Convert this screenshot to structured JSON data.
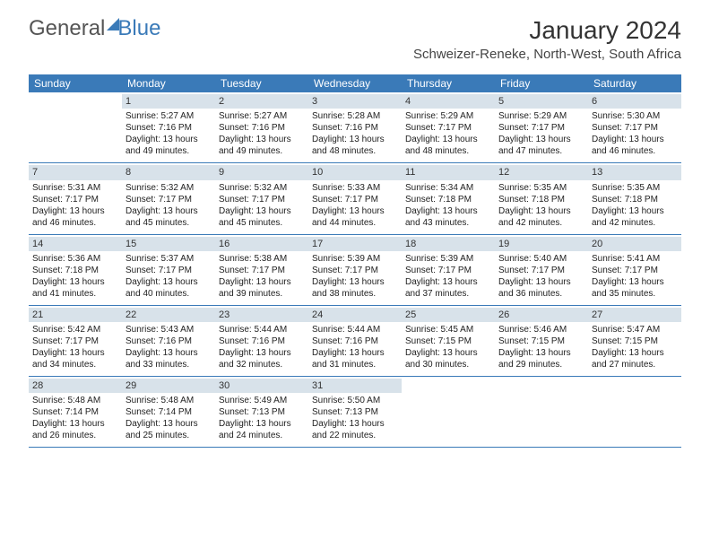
{
  "logo": {
    "text1": "General",
    "text2": "Blue"
  },
  "title": "January 2024",
  "location": "Schweizer-Reneke, North-West, South Africa",
  "colors": {
    "header_bg": "#3a7ab8",
    "header_text": "#ffffff",
    "datebar_bg": "#d8e2ea",
    "row_border": "#3a7ab8",
    "page_bg": "#ffffff"
  },
  "day_headers": [
    "Sunday",
    "Monday",
    "Tuesday",
    "Wednesday",
    "Thursday",
    "Friday",
    "Saturday"
  ],
  "weeks": [
    [
      {
        "empty": true
      },
      {
        "date": "1",
        "sunrise": "Sunrise: 5:27 AM",
        "sunset": "Sunset: 7:16 PM",
        "daylight": "Daylight: 13 hours and 49 minutes."
      },
      {
        "date": "2",
        "sunrise": "Sunrise: 5:27 AM",
        "sunset": "Sunset: 7:16 PM",
        "daylight": "Daylight: 13 hours and 49 minutes."
      },
      {
        "date": "3",
        "sunrise": "Sunrise: 5:28 AM",
        "sunset": "Sunset: 7:16 PM",
        "daylight": "Daylight: 13 hours and 48 minutes."
      },
      {
        "date": "4",
        "sunrise": "Sunrise: 5:29 AM",
        "sunset": "Sunset: 7:17 PM",
        "daylight": "Daylight: 13 hours and 48 minutes."
      },
      {
        "date": "5",
        "sunrise": "Sunrise: 5:29 AM",
        "sunset": "Sunset: 7:17 PM",
        "daylight": "Daylight: 13 hours and 47 minutes."
      },
      {
        "date": "6",
        "sunrise": "Sunrise: 5:30 AM",
        "sunset": "Sunset: 7:17 PM",
        "daylight": "Daylight: 13 hours and 46 minutes."
      }
    ],
    [
      {
        "date": "7",
        "sunrise": "Sunrise: 5:31 AM",
        "sunset": "Sunset: 7:17 PM",
        "daylight": "Daylight: 13 hours and 46 minutes."
      },
      {
        "date": "8",
        "sunrise": "Sunrise: 5:32 AM",
        "sunset": "Sunset: 7:17 PM",
        "daylight": "Daylight: 13 hours and 45 minutes."
      },
      {
        "date": "9",
        "sunrise": "Sunrise: 5:32 AM",
        "sunset": "Sunset: 7:17 PM",
        "daylight": "Daylight: 13 hours and 45 minutes."
      },
      {
        "date": "10",
        "sunrise": "Sunrise: 5:33 AM",
        "sunset": "Sunset: 7:17 PM",
        "daylight": "Daylight: 13 hours and 44 minutes."
      },
      {
        "date": "11",
        "sunrise": "Sunrise: 5:34 AM",
        "sunset": "Sunset: 7:18 PM",
        "daylight": "Daylight: 13 hours and 43 minutes."
      },
      {
        "date": "12",
        "sunrise": "Sunrise: 5:35 AM",
        "sunset": "Sunset: 7:18 PM",
        "daylight": "Daylight: 13 hours and 42 minutes."
      },
      {
        "date": "13",
        "sunrise": "Sunrise: 5:35 AM",
        "sunset": "Sunset: 7:18 PM",
        "daylight": "Daylight: 13 hours and 42 minutes."
      }
    ],
    [
      {
        "date": "14",
        "sunrise": "Sunrise: 5:36 AM",
        "sunset": "Sunset: 7:18 PM",
        "daylight": "Daylight: 13 hours and 41 minutes."
      },
      {
        "date": "15",
        "sunrise": "Sunrise: 5:37 AM",
        "sunset": "Sunset: 7:17 PM",
        "daylight": "Daylight: 13 hours and 40 minutes."
      },
      {
        "date": "16",
        "sunrise": "Sunrise: 5:38 AM",
        "sunset": "Sunset: 7:17 PM",
        "daylight": "Daylight: 13 hours and 39 minutes."
      },
      {
        "date": "17",
        "sunrise": "Sunrise: 5:39 AM",
        "sunset": "Sunset: 7:17 PM",
        "daylight": "Daylight: 13 hours and 38 minutes."
      },
      {
        "date": "18",
        "sunrise": "Sunrise: 5:39 AM",
        "sunset": "Sunset: 7:17 PM",
        "daylight": "Daylight: 13 hours and 37 minutes."
      },
      {
        "date": "19",
        "sunrise": "Sunrise: 5:40 AM",
        "sunset": "Sunset: 7:17 PM",
        "daylight": "Daylight: 13 hours and 36 minutes."
      },
      {
        "date": "20",
        "sunrise": "Sunrise: 5:41 AM",
        "sunset": "Sunset: 7:17 PM",
        "daylight": "Daylight: 13 hours and 35 minutes."
      }
    ],
    [
      {
        "date": "21",
        "sunrise": "Sunrise: 5:42 AM",
        "sunset": "Sunset: 7:17 PM",
        "daylight": "Daylight: 13 hours and 34 minutes."
      },
      {
        "date": "22",
        "sunrise": "Sunrise: 5:43 AM",
        "sunset": "Sunset: 7:16 PM",
        "daylight": "Daylight: 13 hours and 33 minutes."
      },
      {
        "date": "23",
        "sunrise": "Sunrise: 5:44 AM",
        "sunset": "Sunset: 7:16 PM",
        "daylight": "Daylight: 13 hours and 32 minutes."
      },
      {
        "date": "24",
        "sunrise": "Sunrise: 5:44 AM",
        "sunset": "Sunset: 7:16 PM",
        "daylight": "Daylight: 13 hours and 31 minutes."
      },
      {
        "date": "25",
        "sunrise": "Sunrise: 5:45 AM",
        "sunset": "Sunset: 7:15 PM",
        "daylight": "Daylight: 13 hours and 30 minutes."
      },
      {
        "date": "26",
        "sunrise": "Sunrise: 5:46 AM",
        "sunset": "Sunset: 7:15 PM",
        "daylight": "Daylight: 13 hours and 29 minutes."
      },
      {
        "date": "27",
        "sunrise": "Sunrise: 5:47 AM",
        "sunset": "Sunset: 7:15 PM",
        "daylight": "Daylight: 13 hours and 27 minutes."
      }
    ],
    [
      {
        "date": "28",
        "sunrise": "Sunrise: 5:48 AM",
        "sunset": "Sunset: 7:14 PM",
        "daylight": "Daylight: 13 hours and 26 minutes."
      },
      {
        "date": "29",
        "sunrise": "Sunrise: 5:48 AM",
        "sunset": "Sunset: 7:14 PM",
        "daylight": "Daylight: 13 hours and 25 minutes."
      },
      {
        "date": "30",
        "sunrise": "Sunrise: 5:49 AM",
        "sunset": "Sunset: 7:13 PM",
        "daylight": "Daylight: 13 hours and 24 minutes."
      },
      {
        "date": "31",
        "sunrise": "Sunrise: 5:50 AM",
        "sunset": "Sunset: 7:13 PM",
        "daylight": "Daylight: 13 hours and 22 minutes."
      },
      {
        "empty": true
      },
      {
        "empty": true
      },
      {
        "empty": true
      }
    ]
  ]
}
